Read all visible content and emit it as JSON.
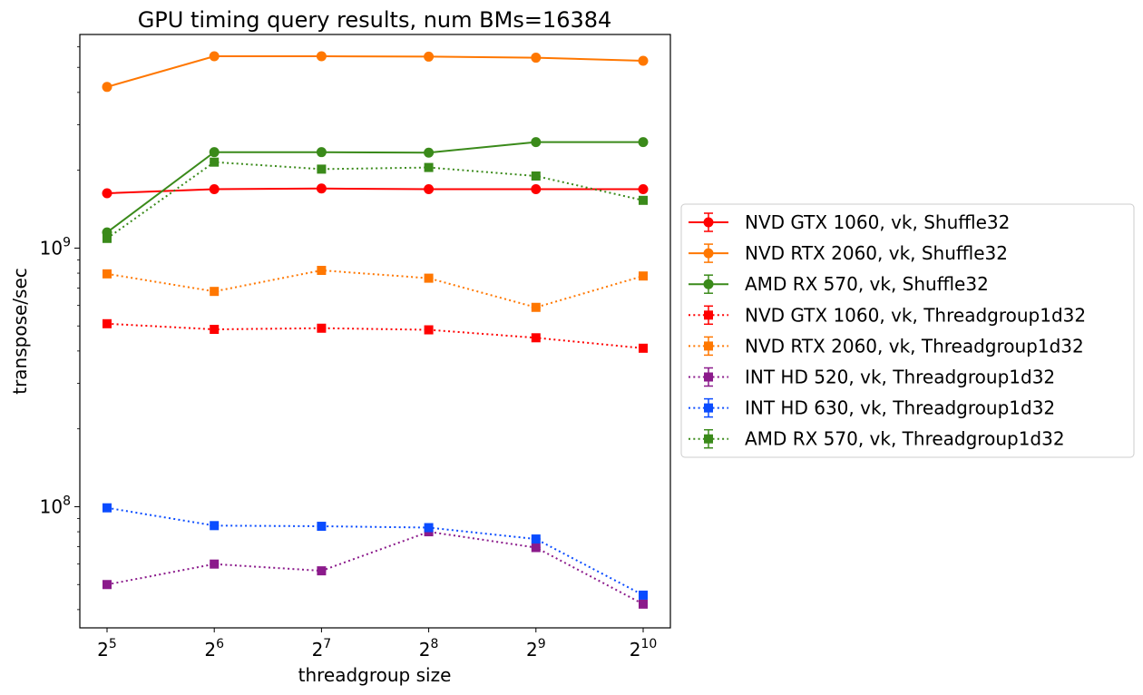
{
  "chart_data": {
    "type": "line",
    "title": "GPU timing query results, num BMs=16384",
    "xlabel": "threadgroup size",
    "ylabel": "transpose/sec",
    "x": [
      32,
      64,
      128,
      256,
      512,
      1024
    ],
    "x_ticks": [
      {
        "base": "2",
        "exp": "5"
      },
      {
        "base": "2",
        "exp": "6"
      },
      {
        "base": "2",
        "exp": "7"
      },
      {
        "base": "2",
        "exp": "8"
      },
      {
        "base": "2",
        "exp": "9"
      },
      {
        "base": "2",
        "exp": "10"
      }
    ],
    "x_scale": "log2",
    "y_scale": "log10",
    "ylim": [
      34000000,
      6700000000
    ],
    "y_ticks": [
      {
        "value": 100000000,
        "base": "10",
        "exp": "8"
      },
      {
        "value": 1000000000,
        "base": "10",
        "exp": "9"
      }
    ],
    "grid": false,
    "legend_placement": "outside right",
    "series": [
      {
        "name": "NVD GTX 1060, vk, Shuffle32",
        "color": "#ff0000",
        "marker": "circle",
        "linestyle": "solid",
        "values": [
          1630000000,
          1690000000,
          1700000000,
          1690000000,
          1690000000,
          1690000000
        ]
      },
      {
        "name": "NVD RTX 2060, vk, Shuffle32",
        "color": "#ff7700",
        "marker": "circle",
        "linestyle": "solid",
        "values": [
          4200000000,
          5520000000,
          5520000000,
          5500000000,
          5450000000,
          5300000000
        ]
      },
      {
        "name": "AMD RX 570, vk, Shuffle32",
        "color": "#3a8a1a",
        "marker": "circle",
        "linestyle": "solid",
        "values": [
          1150000000,
          2350000000,
          2350000000,
          2340000000,
          2570000000,
          2570000000
        ]
      },
      {
        "name": "NVD GTX 1060, vk, Threadgroup1d32",
        "color": "#ff0000",
        "marker": "square",
        "linestyle": "dotted",
        "values": [
          510000000,
          485000000,
          490000000,
          483000000,
          450000000,
          410000000
        ]
      },
      {
        "name": "NVD RTX 2060, vk, Threadgroup1d32",
        "color": "#ff7700",
        "marker": "square",
        "linestyle": "dotted",
        "values": [
          795000000,
          680000000,
          820000000,
          765000000,
          590000000,
          780000000
        ]
      },
      {
        "name": "INT HD 520, vk, Threadgroup1d32",
        "color": "#8b1a8b",
        "marker": "square",
        "linestyle": "dotted",
        "values": [
          50000000,
          60000000,
          56500000,
          80000000,
          69500000,
          42000000
        ]
      },
      {
        "name": "INT HD 630, vk, Threadgroup1d32",
        "color": "#0a4cff",
        "marker": "square",
        "linestyle": "dotted",
        "values": [
          99000000,
          84500000,
          84000000,
          83000000,
          75000000,
          45500000
        ]
      },
      {
        "name": "AMD RX 570, vk, Threadgroup1d32",
        "color": "#3a8a1a",
        "marker": "square",
        "linestyle": "dotted",
        "values": [
          1090000000,
          2150000000,
          2020000000,
          2050000000,
          1900000000,
          1530000000
        ]
      }
    ]
  }
}
